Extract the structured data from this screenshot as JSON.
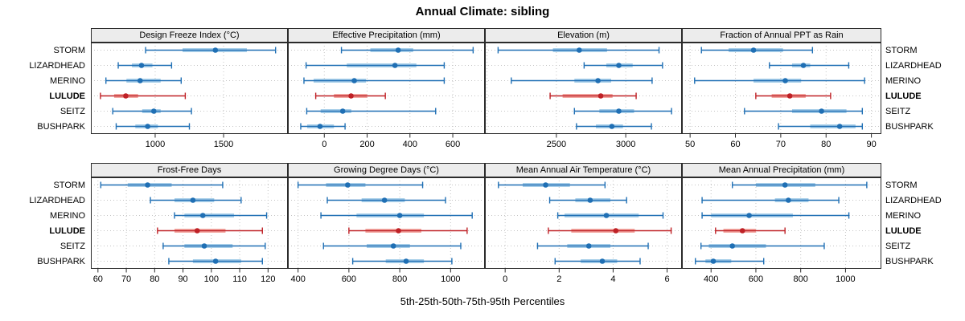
{
  "title": "Annual Climate: sibling",
  "x_caption": "5th-25th-50th-75th-95th Percentiles",
  "stations": [
    "STORM",
    "LIZARDHEAD",
    "MERINO",
    "LULUDE",
    "SEITZ",
    "BUSHPARK"
  ],
  "highlight_station": "LULUDE",
  "percentile_levels": [
    5,
    25,
    50,
    75,
    95
  ],
  "colors": {
    "blue": "#1f6fb4",
    "blue_light": "#a8cfe9",
    "red": "#bf2126",
    "red_light": "#f3a8a2",
    "strip_bg": "#ececec",
    "panel_border": "#2b2b2b",
    "grid": "#c4c4c4",
    "text": "#000000"
  },
  "chart_data": [
    {
      "type": "dot-whisker-percentile",
      "title": "Design Freeze Index (°C)",
      "row": 0,
      "col": 0,
      "xlim": [
        530,
        1970
      ],
      "ticks": [
        1000,
        1500
      ],
      "values": [
        [
          930,
          1200,
          1440,
          1670,
          1880
        ],
        [
          730,
          830,
          900,
          980,
          1120
        ],
        [
          640,
          790,
          890,
          1040,
          1190
        ],
        [
          600,
          700,
          785,
          875,
          1220
        ],
        [
          690,
          905,
          990,
          1040,
          1265
        ],
        [
          715,
          855,
          945,
          1020,
          1250
        ]
      ]
    },
    {
      "type": "dot-whisker-percentile",
      "title": "Effective Precipitation (mm)",
      "row": 0,
      "col": 1,
      "xlim": [
        -170,
        750
      ],
      "ticks": [
        0,
        200,
        400,
        600
      ],
      "values": [
        [
          80,
          215,
          345,
          415,
          695
        ],
        [
          -85,
          105,
          330,
          430,
          560
        ],
        [
          -95,
          -50,
          140,
          195,
          560
        ],
        [
          -40,
          45,
          125,
          200,
          285
        ],
        [
          -82,
          -17,
          86,
          126,
          520
        ],
        [
          -110,
          -80,
          -20,
          45,
          97
        ]
      ]
    },
    {
      "type": "dot-whisker-percentile",
      "title": "Elevation (m)",
      "row": 0,
      "col": 2,
      "xlim": [
        1985,
        3405
      ],
      "ticks": [
        2500,
        3000
      ],
      "values": [
        [
          2080,
          2475,
          2665,
          2865,
          3240
        ],
        [
          2700,
          2860,
          2950,
          3050,
          3265
        ],
        [
          2175,
          2630,
          2800,
          2895,
          3190
        ],
        [
          2455,
          2545,
          2820,
          2905,
          3075
        ],
        [
          2630,
          2810,
          2950,
          3060,
          3330
        ],
        [
          2645,
          2785,
          2900,
          2980,
          3185
        ]
      ]
    },
    {
      "type": "dot-whisker-percentile",
      "title": "Fraction of Annual PPT as Rain",
      "row": 0,
      "col": 3,
      "xlim": [
        48.2,
        92.2
      ],
      "ticks": [
        50,
        60,
        70,
        80,
        90
      ],
      "values": [
        [
          52.5,
          58.5,
          64,
          70.5,
          77
        ],
        [
          67.5,
          72.5,
          75,
          76.5,
          85
        ],
        [
          51,
          64,
          71,
          74.5,
          88.5
        ],
        [
          64.5,
          68,
          72,
          75.5,
          81
        ],
        [
          62,
          72.5,
          79,
          84.5,
          88
        ],
        [
          69.5,
          76.5,
          83,
          86.5,
          88
        ]
      ]
    },
    {
      "type": "dot-whisker-percentile",
      "title": "Frost-Free Days",
      "row": 1,
      "col": 0,
      "xlim": [
        57.5,
        127
      ],
      "ticks": [
        60,
        70,
        80,
        90,
        100,
        110,
        120
      ],
      "values": [
        [
          61,
          70.5,
          77.5,
          86,
          104
        ],
        [
          78.5,
          87,
          93.5,
          101,
          110.5
        ],
        [
          87,
          90.5,
          97,
          108,
          119.5
        ],
        [
          81,
          87,
          95,
          105,
          118
        ],
        [
          83,
          90.5,
          97.5,
          107.5,
          119
        ],
        [
          85,
          93.5,
          101.5,
          110.5,
          118
        ]
      ]
    },
    {
      "type": "dot-whisker-percentile",
      "title": "Growing Degree Days (°C)",
      "row": 1,
      "col": 1,
      "xlim": [
        360,
        1135
      ],
      "ticks": [
        400,
        600,
        800,
        1000
      ],
      "values": [
        [
          400,
          510,
          595,
          665,
          890
        ],
        [
          515,
          650,
          740,
          820,
          980
        ],
        [
          490,
          630,
          800,
          895,
          1085
        ],
        [
          600,
          665,
          795,
          885,
          1065
        ],
        [
          500,
          670,
          775,
          840,
          1040
        ],
        [
          615,
          745,
          825,
          895,
          1005
        ]
      ]
    },
    {
      "type": "dot-whisker-percentile",
      "title": "Mean Annual Air Temperature (°C)",
      "row": 1,
      "col": 2,
      "xlim": [
        -0.75,
        6.55
      ],
      "ticks": [
        0,
        2,
        4,
        6
      ],
      "values": [
        [
          -0.25,
          0.65,
          1.5,
          2.4,
          3.7
        ],
        [
          1.65,
          2.6,
          3.15,
          3.9,
          4.5
        ],
        [
          1.95,
          2.2,
          3.75,
          4.95,
          5.85
        ],
        [
          1.6,
          2.45,
          4.1,
          4.8,
          6.15
        ],
        [
          1.2,
          2.3,
          3.1,
          3.9,
          5.3
        ],
        [
          1.85,
          2.8,
          3.6,
          4.15,
          5.0
        ]
      ]
    },
    {
      "type": "dot-whisker-percentile",
      "title": "Mean Annual Precipitation (mm)",
      "row": 1,
      "col": 3,
      "xlim": [
        270,
        1160
      ],
      "ticks": [
        400,
        600,
        800,
        1000
      ],
      "values": [
        [
          495,
          600,
          730,
          865,
          1095
        ],
        [
          360,
          685,
          745,
          835,
          970
        ],
        [
          360,
          400,
          570,
          765,
          1015
        ],
        [
          420,
          455,
          540,
          600,
          730
        ],
        [
          355,
          390,
          495,
          645,
          905
        ],
        [
          330,
          375,
          410,
          490,
          635
        ]
      ]
    }
  ]
}
